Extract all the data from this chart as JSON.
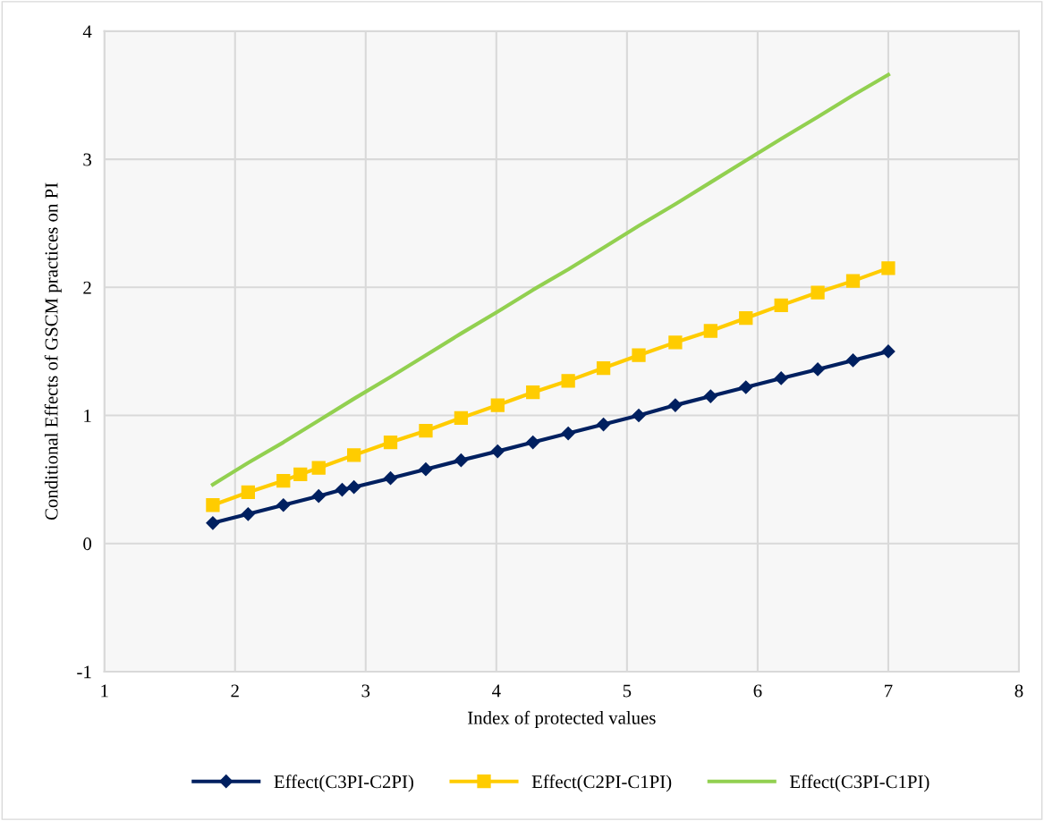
{
  "chart_data": {
    "type": "line",
    "xlabel": "Index of protected values",
    "ylabel": "Conditional Effects of GSCM practices on PI",
    "xlim": [
      1,
      8
    ],
    "xticks": [
      1,
      2,
      3,
      4,
      5,
      6,
      7,
      8
    ],
    "ylim": [
      -1,
      4
    ],
    "yticks": [
      -1,
      0,
      1,
      2,
      3,
      4
    ],
    "grid": true,
    "legend": "bottom",
    "line_style": "solid",
    "series": [
      {
        "name": "Effect(C3PI-C2PI)",
        "color": "#002060",
        "marker": "diamond",
        "x": [
          1.83,
          2.1,
          2.37,
          2.64,
          2.82,
          2.91,
          3.19,
          3.46,
          3.73,
          4.01,
          4.28,
          4.55,
          4.82,
          5.09,
          5.37,
          5.64,
          5.91,
          6.18,
          6.46,
          6.73,
          7.0
        ],
        "values": [
          0.16,
          0.23,
          0.3,
          0.37,
          0.42,
          0.44,
          0.51,
          0.58,
          0.65,
          0.72,
          0.79,
          0.86,
          0.93,
          1.0,
          1.08,
          1.15,
          1.22,
          1.29,
          1.36,
          1.43,
          1.5
        ]
      },
      {
        "name": "Effect(C2PI-C1PI)",
        "color": "#ffcc00",
        "marker": "square",
        "x": [
          1.83,
          2.1,
          2.37,
          2.5,
          2.64,
          2.91,
          3.19,
          3.46,
          3.73,
          4.01,
          4.28,
          4.55,
          4.82,
          5.09,
          5.37,
          5.64,
          5.91,
          6.18,
          6.46,
          6.73,
          7.0
        ],
        "values": [
          0.3,
          0.4,
          0.49,
          0.54,
          0.59,
          0.69,
          0.79,
          0.88,
          0.98,
          1.08,
          1.18,
          1.27,
          1.37,
          1.47,
          1.57,
          1.66,
          1.76,
          1.86,
          1.96,
          2.05,
          2.15
        ]
      },
      {
        "name": "Effect(C3PI-C1PI)",
        "color": "#92d050",
        "marker": "none",
        "x": [
          1.83,
          2.1,
          2.37,
          2.64,
          2.91,
          3.19,
          3.46,
          3.73,
          4.01,
          4.28,
          4.55,
          4.82,
          5.09,
          5.37,
          5.64,
          5.91,
          6.18,
          6.46,
          6.73,
          7.0
        ],
        "values": [
          0.46,
          0.63,
          0.79,
          0.96,
          1.13,
          1.3,
          1.47,
          1.64,
          1.81,
          1.98,
          2.14,
          2.31,
          2.48,
          2.65,
          2.82,
          2.99,
          3.16,
          3.33,
          3.5,
          3.66
        ]
      }
    ]
  }
}
